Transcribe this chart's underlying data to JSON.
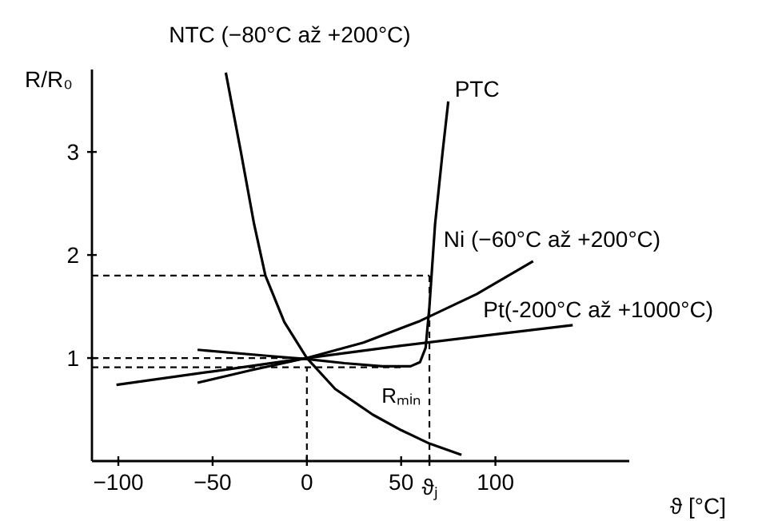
{
  "chart_data": {
    "type": "line",
    "xlabel": "ϑ [°C]",
    "ylabel": "R/R₀",
    "xlim": [
      -114,
      171
    ],
    "ylim": [
      0,
      3.8
    ],
    "xticks": [
      -100,
      -50,
      0,
      50,
      {
        "value": 65,
        "label": "ϑⱼ"
      },
      100
    ],
    "yticks": [
      1,
      2,
      3
    ],
    "series": [
      {
        "name": "NTC (−80°C až +200°C)",
        "color": "#000000",
        "x": [
          -43,
          -35,
          -28,
          -22,
          -12,
          0,
          15,
          35,
          50,
          65,
          82
        ],
        "values": [
          3.77,
          3.0,
          2.3,
          1.8,
          1.35,
          1.0,
          0.7,
          0.45,
          0.3,
          0.17,
          0.06
        ]
      },
      {
        "name": "PTC",
        "color": "#000000",
        "x": [
          -58,
          -20,
          0,
          20,
          40,
          55,
          60,
          63,
          65,
          68,
          72,
          75
        ],
        "values": [
          1.08,
          1.02,
          0.99,
          0.95,
          0.92,
          0.92,
          0.96,
          1.1,
          1.5,
          2.3,
          3.0,
          3.49
        ]
      },
      {
        "name": "Ni (−60°C až +200°C)",
        "color": "#000000",
        "x": [
          -58,
          -30,
          0,
          30,
          60,
          90,
          120
        ],
        "values": [
          0.76,
          0.88,
          1.0,
          1.15,
          1.36,
          1.62,
          1.94
        ]
      },
      {
        "name": "Pt(-200°C až +1000°C)",
        "color": "#000000",
        "x": [
          -101,
          -50,
          0,
          50,
          100,
          141
        ],
        "values": [
          0.74,
          0.87,
          1.0,
          1.12,
          1.23,
          1.32
        ]
      },
      {
        "color": "#000000",
        "line_style": "dashed",
        "x": [
          -114,
          65
        ],
        "values": [
          1.8,
          1.8
        ]
      },
      {
        "color": "#000000",
        "line_style": "dashed",
        "x": [
          65,
          65
        ],
        "values": [
          0,
          1.8
        ]
      },
      {
        "color": "#000000",
        "line_style": "dashed",
        "x": [
          -114,
          0
        ],
        "values": [
          1.0,
          1.0
        ]
      },
      {
        "color": "#000000",
        "line_style": "dashed",
        "x": [
          -114,
          50
        ],
        "values": [
          0.91,
          0.91
        ]
      },
      {
        "color": "#000000",
        "line_style": "dashed",
        "x": [
          0,
          0
        ],
        "values": [
          0,
          0.91
        ]
      }
    ],
    "annotations": [
      {
        "text": "Rₘᵢₙ",
        "x": 50,
        "y": 0.91
      }
    ]
  }
}
